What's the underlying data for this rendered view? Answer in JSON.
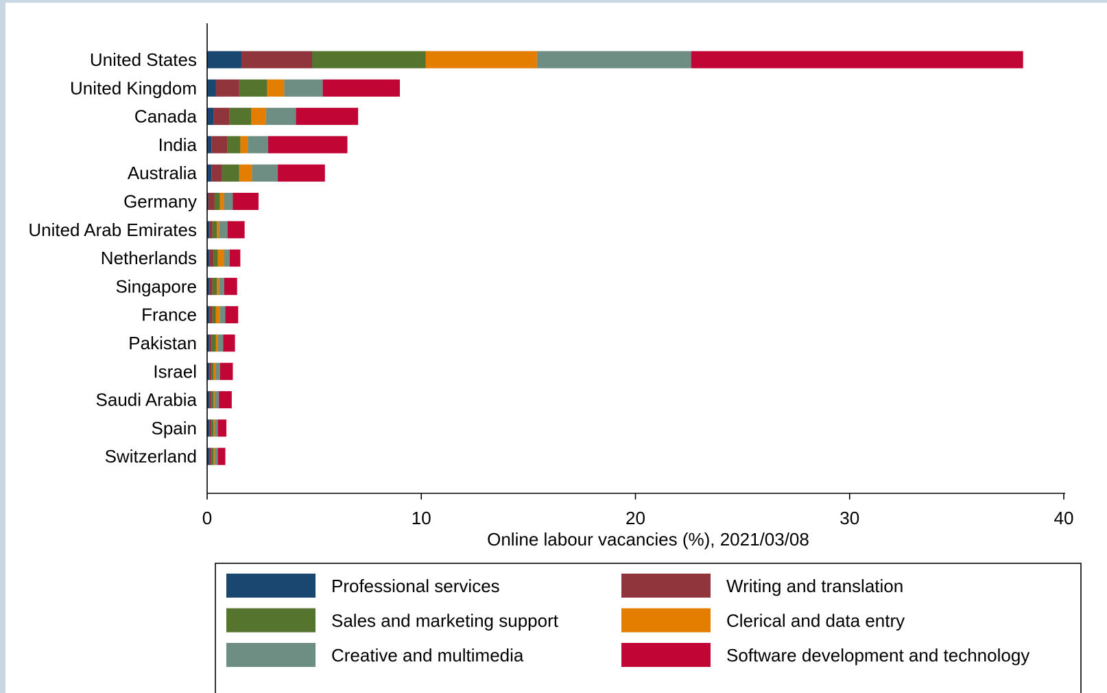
{
  "chart_data": {
    "type": "bar",
    "orientation": "horizontal",
    "stacked": true,
    "categories": [
      "United States",
      "United Kingdom",
      "Canada",
      "India",
      "Australia",
      "Germany",
      "United Arab Emirates",
      "Netherlands",
      "Singapore",
      "France",
      "Pakistan",
      "Israel",
      "Saudi Arabia",
      "Spain",
      "Switzerland"
    ],
    "series": [
      {
        "name": "Professional services",
        "color": "#1a476f",
        "values": [
          1.6,
          0.4,
          0.3,
          0.2,
          0.2,
          0.05,
          0.1,
          0.1,
          0.1,
          0.1,
          0.1,
          0.1,
          0.1,
          0.1,
          0.1
        ]
      },
      {
        "name": "Writing and translation",
        "color": "#90353b",
        "values": [
          3.3,
          1.1,
          0.75,
          0.75,
          0.5,
          0.3,
          0.15,
          0.2,
          0.15,
          0.15,
          0.1,
          0.1,
          0.1,
          0.1,
          0.1
        ]
      },
      {
        "name": "Sales and marketing support",
        "color": "#55752f",
        "values": [
          5.3,
          1.3,
          1.0,
          0.6,
          0.8,
          0.25,
          0.2,
          0.2,
          0.2,
          0.15,
          0.2,
          0.1,
          0.1,
          0.1,
          0.1
        ]
      },
      {
        "name": "Clerical and data entry",
        "color": "#e37e00",
        "values": [
          5.2,
          0.8,
          0.7,
          0.35,
          0.6,
          0.2,
          0.1,
          0.3,
          0.1,
          0.2,
          0.1,
          0.1,
          0.05,
          0.05,
          0.05
        ]
      },
      {
        "name": "Creative and multimedia",
        "color": "#6e8e84",
        "values": [
          7.2,
          1.8,
          1.4,
          0.95,
          1.2,
          0.4,
          0.4,
          0.25,
          0.25,
          0.25,
          0.25,
          0.2,
          0.2,
          0.15,
          0.15
        ]
      },
      {
        "name": "Software development and technology",
        "color": "#c10534",
        "values": [
          15.5,
          3.6,
          2.9,
          3.7,
          2.2,
          1.2,
          0.8,
          0.5,
          0.6,
          0.6,
          0.55,
          0.6,
          0.6,
          0.4,
          0.35
        ]
      }
    ],
    "xlabel": "Online labour vacancies (%), 2021/03/08",
    "ylabel": "",
    "xlim": [
      0,
      40
    ],
    "xticks": [
      0,
      10,
      20,
      30,
      40
    ],
    "grid": false,
    "legend_position": "bottom"
  }
}
